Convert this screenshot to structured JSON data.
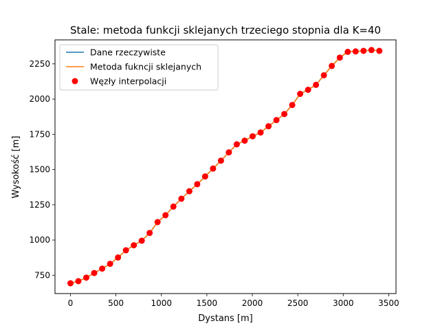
{
  "chart_data": {
    "type": "line",
    "title": "Stale: metoda funkcji sklejanych trzeciego stopnia dla K=40",
    "xlabel": "Dystans [m]",
    "ylabel": "Wysokość [m]",
    "xlim": [
      -170,
      3580
    ],
    "ylim": [
      620,
      2420
    ],
    "x_ticks": [
      0,
      500,
      1000,
      1500,
      2000,
      2500,
      3000,
      3500
    ],
    "y_ticks": [
      750,
      1000,
      1250,
      1500,
      1750,
      2000,
      2250
    ],
    "grid": false,
    "legend_position": "top-left",
    "series": [
      {
        "name": "Dane rzeczywiste",
        "kind": "line",
        "color": "#1f77b4",
        "x": [
          0,
          87,
          174,
          261,
          349,
          436,
          523,
          610,
          697,
          784,
          871,
          958,
          1045,
          1132,
          1220,
          1307,
          1394,
          1481,
          1568,
          1655,
          1742,
          1829,
          1916,
          2003,
          2091,
          2178,
          2265,
          2352,
          2439,
          2526,
          2613,
          2700,
          2787,
          2874,
          2962,
          3049,
          3136,
          3223,
          3310,
          3397
        ],
        "y": [
          693,
          708,
          733,
          766,
          797,
          831,
          876,
          927,
          963,
          995,
          1050,
          1127,
          1176,
          1237,
          1293,
          1346,
          1396,
          1451,
          1507,
          1563,
          1622,
          1679,
          1705,
          1736,
          1763,
          1807,
          1851,
          1894,
          1958,
          2037,
          2066,
          2101,
          2169,
          2235,
          2294,
          2335,
          2338,
          2342,
          2348,
          2342
        ]
      },
      {
        "name": "Metoda fukncji sklejanych",
        "kind": "line",
        "color": "#ff7f0e",
        "x": [
          0,
          87,
          174,
          261,
          349,
          436,
          523,
          610,
          697,
          784,
          871,
          958,
          1045,
          1132,
          1220,
          1307,
          1394,
          1481,
          1568,
          1655,
          1742,
          1829,
          1916,
          2003,
          2091,
          2178,
          2265,
          2352,
          2439,
          2526,
          2613,
          2700,
          2787,
          2874,
          2962,
          3049,
          3136,
          3223,
          3310,
          3397
        ],
        "y": [
          693,
          708,
          733,
          766,
          797,
          831,
          876,
          927,
          963,
          995,
          1050,
          1127,
          1176,
          1237,
          1293,
          1346,
          1396,
          1451,
          1507,
          1563,
          1622,
          1679,
          1705,
          1736,
          1763,
          1807,
          1851,
          1894,
          1958,
          2037,
          2066,
          2101,
          2169,
          2235,
          2294,
          2335,
          2338,
          2342,
          2348,
          2342
        ]
      },
      {
        "name": "Węzły interpolacji",
        "kind": "scatter",
        "color": "#ff0000",
        "x": [
          0,
          87,
          174,
          261,
          349,
          436,
          523,
          610,
          697,
          784,
          871,
          958,
          1045,
          1132,
          1220,
          1307,
          1394,
          1481,
          1568,
          1655,
          1742,
          1829,
          1916,
          2003,
          2091,
          2178,
          2265,
          2352,
          2439,
          2526,
          2613,
          2700,
          2787,
          2874,
          2962,
          3049,
          3136,
          3223,
          3310,
          3397
        ],
        "y": [
          693,
          708,
          733,
          766,
          797,
          831,
          876,
          927,
          963,
          995,
          1050,
          1127,
          1176,
          1237,
          1293,
          1346,
          1396,
          1451,
          1507,
          1563,
          1622,
          1679,
          1705,
          1736,
          1763,
          1807,
          1851,
          1894,
          1958,
          2037,
          2066,
          2101,
          2169,
          2235,
          2294,
          2335,
          2338,
          2342,
          2348,
          2342
        ]
      }
    ]
  }
}
